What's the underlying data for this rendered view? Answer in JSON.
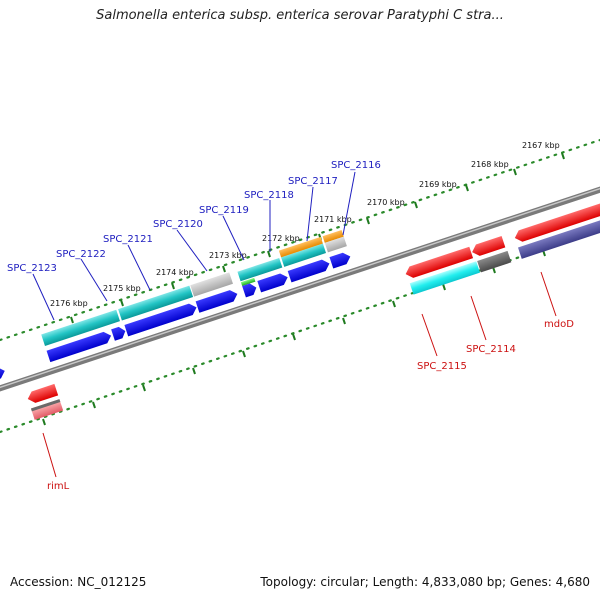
{
  "title": "Salmonella enterica subsp. enterica serovar Paratyphi C stra...",
  "footer": {
    "accession": "Accession: NC_012125",
    "topology": "Topology: circular; Length: 4,833,080 bp; Genes: 4,680"
  },
  "colors": {
    "backbone": "#8a8a8a",
    "tick_dots": "#2a8a2a",
    "upper_label": "#2020c0",
    "lower_label": "#cc1111"
  },
  "ruler_labels": [
    "2167 kbp",
    "2168 kbp",
    "2169 kbp",
    "2170 kbp",
    "2171 kbp",
    "2172 kbp",
    "2173 kbp",
    "2174 kbp",
    "2175 kbp",
    "2176 kbp"
  ],
  "upper_genes": [
    "SPC_2116",
    "SPC_2117",
    "SPC_2118",
    "SPC_2119",
    "SPC_2120",
    "SPC_2121",
    "SPC_2122",
    "SPC_2123"
  ],
  "lower_genes": [
    "mdoD",
    "SPC_2114",
    "SPC_2115",
    "rimL"
  ]
}
